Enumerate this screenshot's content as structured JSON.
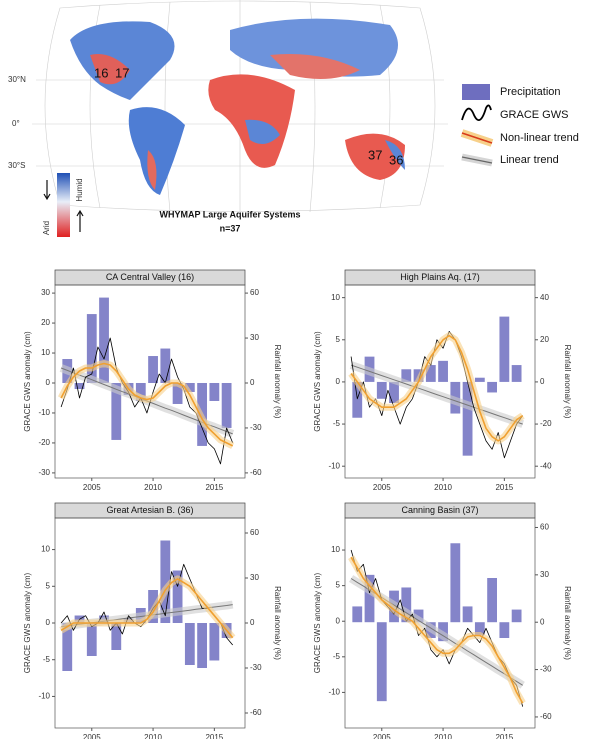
{
  "map": {
    "lat_labels": [
      "30°N",
      "0°",
      "30°S"
    ],
    "aquifer_labels": [
      "16",
      "17",
      "37",
      "36"
    ],
    "title": "WHYMAP Large Aquifer Systems",
    "subtitle": "n=37",
    "colorbar": {
      "humid": "Humid",
      "arid": "Arid"
    }
  },
  "chart_data": [
    {
      "type": "combo",
      "title": "CA Central Valley (16)",
      "ylabel": "GRACE GWS anomaly (cm)",
      "y2label": "Rainfall anomaly (%)",
      "x": [
        2002.5,
        2003,
        2003.5,
        2004,
        2004.5,
        2005,
        2005.5,
        2006,
        2006.5,
        2007,
        2007.5,
        2008,
        2008.5,
        2009,
        2009.5,
        2010,
        2010.5,
        2011,
        2011.5,
        2012,
        2012.5,
        2013,
        2013.5,
        2014,
        2014.5,
        2015,
        2015.5,
        2016,
        2016.5
      ],
      "xlim": [
        2002,
        2017.5
      ],
      "xticks": [
        2005,
        2010,
        2015
      ],
      "ylim": [
        -31.7,
        32.7
      ],
      "yticks": [
        -30,
        -20,
        -10,
        0,
        10,
        20,
        30
      ],
      "y2lim": [
        -63.4,
        65.4
      ],
      "y2ticks": [
        -60,
        -30,
        0,
        30,
        60
      ],
      "series": [
        {
          "name": "Precipitation",
          "color": "#6e6ebf",
          "axis": "y2",
          "x": [
            2003,
            2004,
            2005,
            2006,
            2007,
            2008,
            2009,
            2010,
            2011,
            2012,
            2013,
            2014,
            2015,
            2016
          ],
          "values": [
            16,
            -4,
            46,
            57,
            -38,
            -8,
            -12,
            18,
            23,
            -14,
            -6,
            -42,
            -12,
            -30
          ]
        },
        {
          "name": "GRACE GWS",
          "color": "#000000",
          "values": [
            -8,
            -2,
            5,
            -5,
            2,
            3,
            12,
            8,
            15,
            5,
            0,
            -3,
            -8,
            -5,
            -10,
            -3,
            3,
            0,
            8,
            2,
            -2,
            -8,
            -10,
            -15,
            -20,
            -22,
            -27,
            -15,
            -20
          ]
        },
        {
          "name": "Non-linear trend",
          "color": "#f0a030",
          "values": [
            -5,
            -1,
            2,
            4,
            5,
            5,
            6,
            6.5,
            6,
            4,
            1,
            -2,
            -4,
            -5,
            -5.5,
            -5,
            -3,
            -1,
            0,
            0,
            -1,
            -4,
            -8,
            -12,
            -15,
            -17,
            -19,
            -20,
            -21
          ]
        },
        {
          "name": "Linear trend",
          "color": "#777777",
          "values": [
            5,
            4.2,
            3.4,
            2.6,
            1.9,
            1.1,
            0.3,
            -0.5,
            -1.3,
            -2.1,
            -2.9,
            -3.6,
            -4.4,
            -5.2,
            -6,
            -6.8,
            -7.6,
            -8.4,
            -9.1,
            -9.9,
            -10.7,
            -11.5,
            -12.3,
            -13.1,
            -13.9,
            -14.6,
            -15.4,
            -16.2,
            -17
          ]
        }
      ]
    },
    {
      "type": "combo",
      "title": "High Plains Aq. (17)",
      "ylabel": "GRACE GWS anomaly (cm)",
      "y2label": "Rainfall anomaly (%)",
      "x": [
        2002.5,
        2003,
        2003.5,
        2004,
        2004.5,
        2005,
        2005.5,
        2006,
        2006.5,
        2007,
        2007.5,
        2008,
        2008.5,
        2009,
        2009.5,
        2010,
        2010.5,
        2011,
        2011.5,
        2012,
        2012.5,
        2013,
        2013.5,
        2014,
        2014.5,
        2015,
        2015.5,
        2016,
        2016.5
      ],
      "xlim": [
        2002,
        2017.5
      ],
      "xticks": [
        2005,
        2010,
        2015
      ],
      "ylim": [
        -11.4,
        11.5
      ],
      "yticks": [
        -10,
        -5,
        0,
        5,
        10
      ],
      "y2lim": [
        -45.6,
        46
      ],
      "y2ticks": [
        -40,
        -20,
        0,
        20,
        40
      ],
      "series": [
        {
          "color": "#6e6ebf",
          "axis": "y2",
          "x": [
            2003,
            2004,
            2005,
            2006,
            2007,
            2008,
            2009,
            2010,
            2011,
            2012,
            2013,
            2014,
            2015,
            2016
          ],
          "values": [
            -17,
            12,
            -8,
            -10,
            6,
            6,
            8,
            10,
            -15,
            -35,
            2,
            -5,
            31,
            8
          ]
        },
        {
          "color": "#000000",
          "values": [
            3,
            -2,
            0,
            -3,
            -2,
            -4,
            -1,
            -3,
            -5,
            -3,
            -2,
            0,
            3,
            2,
            5,
            4,
            6,
            5,
            3,
            0,
            -3,
            -5,
            -7,
            -8,
            -6,
            -9,
            -7,
            -5,
            -4
          ]
        },
        {
          "color": "#f0a030",
          "values": [
            1,
            0,
            -1,
            -2,
            -2.5,
            -3,
            -3,
            -3,
            -2.5,
            -2,
            -1,
            0,
            1.5,
            3,
            4,
            5,
            5.5,
            5,
            3.5,
            1.5,
            -1,
            -3.5,
            -5.5,
            -6.5,
            -7,
            -6.5,
            -5.5,
            -4.5,
            -4
          ]
        },
        {
          "color": "#777777",
          "values": [
            2,
            1.75,
            1.5,
            1.25,
            1,
            0.75,
            0.5,
            0.25,
            0,
            -0.25,
            -0.5,
            -0.75,
            -1,
            -1.25,
            -1.5,
            -1.75,
            -2,
            -2.25,
            -2.5,
            -2.75,
            -3,
            -3.25,
            -3.5,
            -3.75,
            -4,
            -4.25,
            -4.5,
            -4.75,
            -5
          ]
        }
      ]
    },
    {
      "type": "combo",
      "title": "Great Artesian B. (36)",
      "ylabel": "GRACE GWS anomaly (cm)",
      "y2label": "Rainfall anomaly (%)",
      "x": [
        2002.5,
        2003,
        2003.5,
        2004,
        2004.5,
        2005,
        2005.5,
        2006,
        2006.5,
        2007,
        2007.5,
        2008,
        2008.5,
        2009,
        2009.5,
        2010,
        2010.5,
        2011,
        2011.5,
        2012,
        2012.5,
        2013,
        2013.5,
        2014,
        2014.5,
        2015,
        2015.5,
        2016,
        2016.5
      ],
      "xlim": [
        2002,
        2017.5
      ],
      "xticks": [
        2005,
        2010,
        2015
      ],
      "ylim": [
        -14.3,
        14.3
      ],
      "yticks": [
        -10,
        -5,
        0,
        5,
        10
      ],
      "y2lim": [
        -70,
        70
      ],
      "y2ticks": [
        -60,
        -30,
        0,
        30,
        60
      ],
      "series": [
        {
          "color": "#6e6ebf",
          "axis": "y2",
          "x": [
            2003,
            2004,
            2005,
            2006,
            2007,
            2008,
            2009,
            2010,
            2011,
            2012,
            2013,
            2014,
            2015,
            2016
          ],
          "values": [
            -32,
            5,
            -22,
            5,
            -18,
            3,
            10,
            22,
            55,
            35,
            -28,
            -30,
            -25,
            -10
          ]
        },
        {
          "color": "#000000",
          "values": [
            0,
            1,
            -1,
            0.5,
            1,
            -0.5,
            0,
            1.5,
            -1,
            0,
            -1.5,
            1,
            0,
            -0.5,
            0.5,
            2,
            3,
            1,
            7,
            5,
            8,
            6,
            4,
            2,
            2,
            1,
            0,
            -2,
            -3
          ]
        },
        {
          "color": "#f0a030",
          "values": [
            -1,
            -0.5,
            0,
            0,
            0,
            0,
            0,
            0,
            0,
            0,
            0,
            0,
            0,
            0,
            0.5,
            1.5,
            3,
            4.5,
            5.5,
            6,
            5.5,
            5,
            4,
            3,
            2,
            1,
            0,
            -1,
            -2
          ]
        },
        {
          "color": "#777777",
          "values": [
            -0.5,
            -0.39,
            -0.29,
            -0.18,
            -0.07,
            0.04,
            0.14,
            0.25,
            0.36,
            0.46,
            0.57,
            0.68,
            0.79,
            0.89,
            1,
            1.11,
            1.21,
            1.32,
            1.43,
            1.54,
            1.64,
            1.75,
            1.86,
            1.96,
            2.07,
            2.18,
            2.29,
            2.39,
            2.5
          ]
        }
      ]
    },
    {
      "type": "combo",
      "title": "Canning Basin (37)",
      "ylabel": "GRACE GWS anomaly (cm)",
      "y2label": "Rainfall anomaly (%)",
      "x": [
        2002.5,
        2003,
        2003.5,
        2004,
        2004.5,
        2005,
        2005.5,
        2006,
        2006.5,
        2007,
        2007.5,
        2008,
        2008.5,
        2009,
        2009.5,
        2010,
        2010.5,
        2011,
        2011.5,
        2012,
        2012.5,
        2013,
        2013.5,
        2014,
        2014.5,
        2015,
        2015.5,
        2016,
        2016.5
      ],
      "xlim": [
        2002,
        2017.5
      ],
      "xticks": [
        2005,
        2010,
        2015
      ],
      "ylim": [
        -15,
        14.5
      ],
      "yticks": [
        -10,
        -5,
        0,
        5,
        10
      ],
      "y2lim": [
        -67,
        66
      ],
      "y2ticks": [
        -60,
        -30,
        0,
        30,
        60
      ],
      "series": [
        {
          "color": "#6e6ebf",
          "axis": "y2",
          "x": [
            2003,
            2004,
            2005,
            2006,
            2007,
            2008,
            2009,
            2010,
            2011,
            2012,
            2013,
            2014,
            2015,
            2016
          ],
          "values": [
            10,
            30,
            -50,
            20,
            22,
            8,
            -10,
            -12,
            50,
            10,
            -8,
            28,
            -10,
            8
          ]
        },
        {
          "color": "#000000",
          "values": [
            10,
            7,
            8,
            4,
            6,
            3,
            2,
            1,
            3,
            0,
            1,
            -2,
            -1,
            -4,
            -5,
            -4,
            -6,
            -4,
            -3,
            -1,
            -2,
            -3,
            -1,
            -3,
            -5,
            -6,
            -8,
            -9,
            -12
          ]
        },
        {
          "color": "#f0a030",
          "values": [
            9,
            7.5,
            6,
            5,
            4,
            3,
            2.3,
            1.6,
            1,
            0.5,
            0,
            -1,
            -2,
            -3,
            -4,
            -4.5,
            -4.5,
            -4,
            -3,
            -2.2,
            -2,
            -2,
            -2.5,
            -3.5,
            -5,
            -6.5,
            -8,
            -10,
            -11.5
          ]
        },
        {
          "color": "#777777",
          "values": [
            6,
            5.46,
            4.93,
            4.39,
            3.86,
            3.32,
            2.79,
            2.25,
            1.71,
            1.18,
            0.64,
            0.11,
            -0.43,
            -0.96,
            -1.5,
            -2.04,
            -2.57,
            -3.11,
            -3.64,
            -4.18,
            -4.71,
            -5.25,
            -5.79,
            -6.32,
            -6.86,
            -7.39,
            -7.93,
            -8.46,
            -9
          ]
        }
      ]
    }
  ]
}
